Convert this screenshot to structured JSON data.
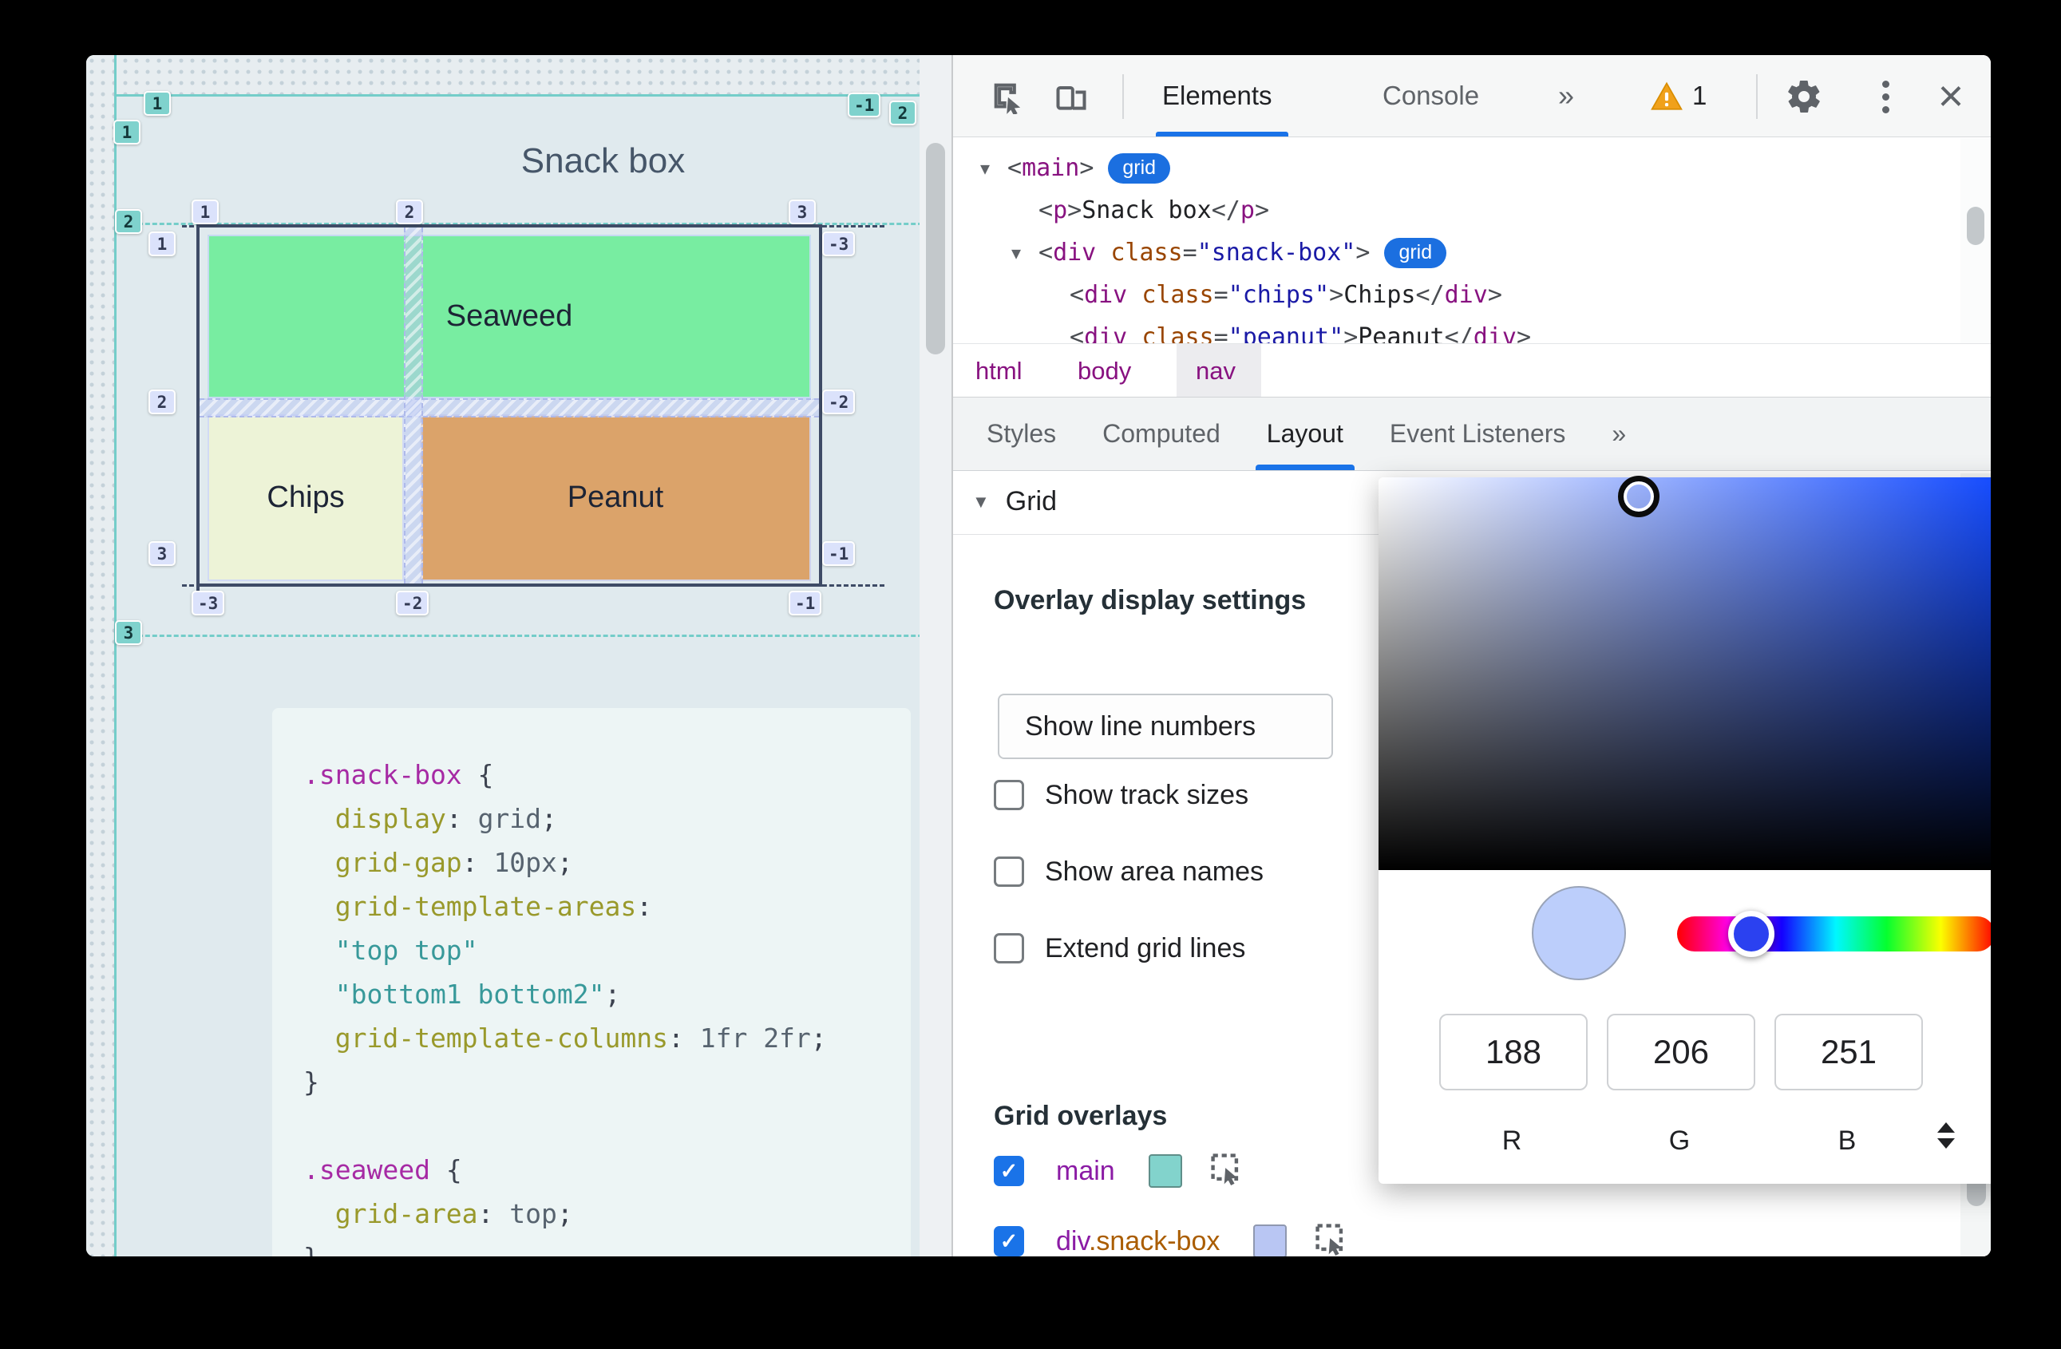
{
  "page": {
    "title": "Snack box",
    "cells": {
      "seaweed": "Seaweed",
      "chips": "Chips",
      "peanut": "Peanut"
    },
    "cell_colors": {
      "seaweed": "#78eda1",
      "chips": "#edf3d7",
      "peanut": "#dba36a"
    },
    "overlay": {
      "teal_color": "#74cdc9",
      "lavender_color": "#dbe2fb",
      "teal_badges": [
        "1",
        "1",
        "-1",
        "2",
        "2",
        "3"
      ],
      "lavender_badges": [
        "1",
        "2",
        "3",
        "1",
        "2",
        "3",
        "-3",
        "-2",
        "-1",
        "-3",
        "-2",
        "-1"
      ]
    },
    "code": [
      [
        {
          "t": ".snack-box",
          "c": "sel"
        },
        {
          "t": " {",
          "c": "pun"
        }
      ],
      [
        {
          "t": "  display",
          "c": "prop"
        },
        {
          "t": ": ",
          "c": "pun"
        },
        {
          "t": "grid",
          "c": "val"
        },
        {
          "t": ";",
          "c": "pun"
        }
      ],
      [
        {
          "t": "  grid-gap",
          "c": "prop"
        },
        {
          "t": ": ",
          "c": "pun"
        },
        {
          "t": "10px",
          "c": "val"
        },
        {
          "t": ";",
          "c": "pun"
        }
      ],
      [
        {
          "t": "  grid-template-areas",
          "c": "prop"
        },
        {
          "t": ":",
          "c": "pun"
        }
      ],
      [
        {
          "t": "  \"top top\"",
          "c": "str"
        }
      ],
      [
        {
          "t": "  \"bottom1 bottom2\"",
          "c": "str"
        },
        {
          "t": ";",
          "c": "pun"
        }
      ],
      [
        {
          "t": "  grid-template-columns",
          "c": "prop"
        },
        {
          "t": ": ",
          "c": "pun"
        },
        {
          "t": "1fr 2fr",
          "c": "val"
        },
        {
          "t": ";",
          "c": "pun"
        }
      ],
      [
        {
          "t": "}",
          "c": "pun"
        }
      ],
      [],
      [
        {
          "t": ".seaweed",
          "c": "sel"
        },
        {
          "t": " {",
          "c": "pun"
        }
      ],
      [
        {
          "t": "  grid-area",
          "c": "prop"
        },
        {
          "t": ": ",
          "c": "pun"
        },
        {
          "t": "top",
          "c": "val"
        },
        {
          "t": ";",
          "c": "pun"
        }
      ],
      [
        {
          "t": "}",
          "c": "pun"
        }
      ]
    ]
  },
  "devtools": {
    "toolbar": {
      "tab_elements": "Elements",
      "tab_console": "Console",
      "more": "»",
      "warning_count": "1"
    },
    "tree": [
      {
        "indent": 0,
        "arrow": true,
        "badge": "grid",
        "tokens": [
          {
            "t": "<",
            "c": "pun"
          },
          {
            "t": "main",
            "c": "tag"
          },
          {
            "t": ">",
            "c": "pun"
          }
        ]
      },
      {
        "indent": 1,
        "tokens": [
          {
            "t": "<",
            "c": "pun"
          },
          {
            "t": "p",
            "c": "tag"
          },
          {
            "t": ">",
            "c": "pun"
          },
          {
            "t": "Snack box",
            "c": "txt"
          },
          {
            "t": "</",
            "c": "pun"
          },
          {
            "t": "p",
            "c": "tag"
          },
          {
            "t": ">",
            "c": "pun"
          }
        ]
      },
      {
        "indent": 1,
        "arrow": true,
        "badge": "grid",
        "tokens": [
          {
            "t": "<",
            "c": "pun"
          },
          {
            "t": "div",
            "c": "tag"
          },
          {
            "t": " ",
            "c": "txt"
          },
          {
            "t": "class",
            "c": "attr"
          },
          {
            "t": "=",
            "c": "pun"
          },
          {
            "t": "\"snack-box\"",
            "c": "val"
          },
          {
            "t": ">",
            "c": "pun"
          }
        ]
      },
      {
        "indent": 2,
        "tokens": [
          {
            "t": "<",
            "c": "pun"
          },
          {
            "t": "div",
            "c": "tag"
          },
          {
            "t": " ",
            "c": "txt"
          },
          {
            "t": "class",
            "c": "attr"
          },
          {
            "t": "=",
            "c": "pun"
          },
          {
            "t": "\"chips\"",
            "c": "val"
          },
          {
            "t": ">",
            "c": "pun"
          },
          {
            "t": "Chips",
            "c": "txt"
          },
          {
            "t": "</",
            "c": "pun"
          },
          {
            "t": "div",
            "c": "tag"
          },
          {
            "t": ">",
            "c": "pun"
          }
        ]
      },
      {
        "indent": 2,
        "tokens": [
          {
            "t": "<",
            "c": "pun"
          },
          {
            "t": "div",
            "c": "tag"
          },
          {
            "t": " ",
            "c": "txt"
          },
          {
            "t": "class",
            "c": "attr"
          },
          {
            "t": "=",
            "c": "pun"
          },
          {
            "t": "\"peanut\"",
            "c": "val"
          },
          {
            "t": ">",
            "c": "pun"
          },
          {
            "t": "Peanut",
            "c": "txt"
          },
          {
            "t": "</",
            "c": "pun"
          },
          {
            "t": "div",
            "c": "tag"
          },
          {
            "t": ">",
            "c": "pun"
          }
        ]
      }
    ],
    "breadcrumbs": [
      {
        "label": "html",
        "selected": false
      },
      {
        "label": "body",
        "selected": false
      },
      {
        "label": "nav",
        "selected": true
      }
    ],
    "sidebar_tabs": [
      {
        "label": "Styles",
        "active": false
      },
      {
        "label": "Computed",
        "active": false
      },
      {
        "label": "Layout",
        "active": true
      },
      {
        "label": "Event Listeners",
        "active": false
      },
      {
        "label": "»",
        "active": false
      }
    ],
    "layout_panel": {
      "section_title": "Grid",
      "overlay_settings_label": "Overlay display settings",
      "line_numbers_select": "Show line numbers",
      "checkboxes": [
        "Show track sizes",
        "Show area names",
        "Extend grid lines"
      ],
      "overlays_label": "Grid overlays",
      "overlays": [
        {
          "checked": true,
          "swatch": "#82d3cc",
          "swatch_border": "#5f8e89",
          "parts": [
            {
              "t": "main",
              "c": "lp-purple"
            }
          ]
        },
        {
          "checked": true,
          "swatch": "#b9c6f3",
          "swatch_border": "#8f98b0",
          "parts": [
            {
              "t": "div",
              "c": "lp-purple"
            },
            {
              "t": ".snack-box",
              "c": "lp-orange"
            }
          ]
        }
      ]
    },
    "color_picker": {
      "r": "188",
      "g": "206",
      "b": "251",
      "r_label": "R",
      "g_label": "G",
      "b_label": "B",
      "swatch_color": "#bccefb",
      "hue_thumb_color": "#2b41f0"
    }
  },
  "colors": {
    "accent": "#1a73e8",
    "warning": "#f0a11b"
  }
}
